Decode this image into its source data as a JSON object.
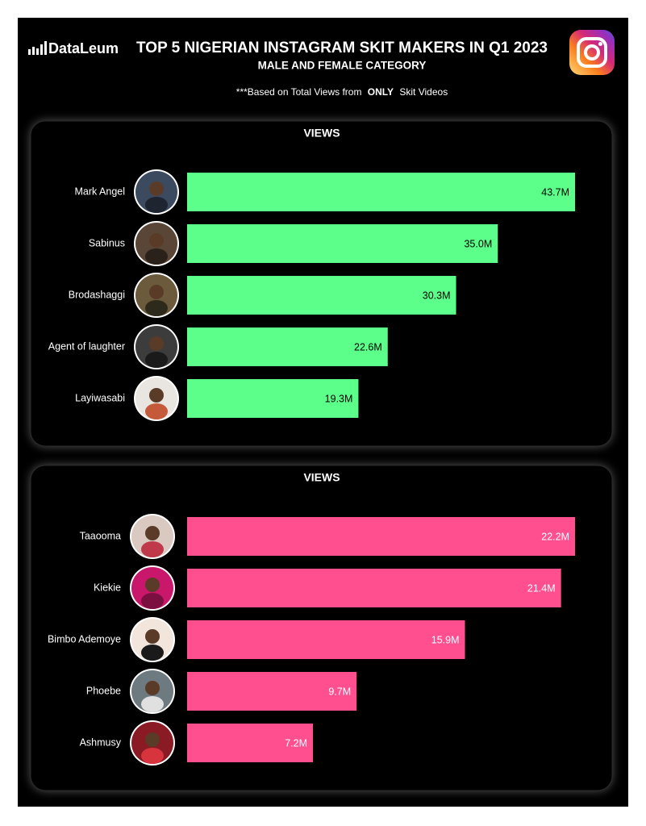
{
  "header": {
    "brand": "DataLeum",
    "title": "TOP 5 NIGERIAN INSTAGRAM SKIT MAKERS IN Q1 2023",
    "subtitle": "MALE AND FEMALE CATEGORY",
    "note": [
      "***Based on Total Views from",
      "ONLY",
      "Skit Videos"
    ]
  },
  "chart_data": [
    {
      "type": "bar",
      "orientation": "horizontal",
      "title": "VIEWS",
      "categories": [
        "Mark Angel",
        "Sabinus",
        "Brodashaggi",
        "Agent of laughter",
        "Layiwasabi"
      ],
      "values": [
        43.7,
        35.0,
        30.3,
        22.6,
        19.3
      ],
      "value_labels": [
        "43.7M",
        "35.0M",
        "30.3M",
        "22.6M",
        "19.3M"
      ],
      "color": "#5cff8a",
      "label_color": "#000000"
    },
    {
      "type": "bar",
      "orientation": "horizontal",
      "title": "VIEWS",
      "categories": [
        "Taaooma",
        "Kiekie",
        "Bimbo Ademoye",
        "Phoebe",
        "Ashmusy"
      ],
      "values": [
        22.2,
        21.4,
        15.9,
        9.7,
        7.2
      ],
      "value_labels": [
        "22.2M",
        "21.4M",
        "15.9M",
        "9.7M",
        "7.2M"
      ],
      "color": "#ff4f8f",
      "label_color": "#ffffff"
    }
  ]
}
